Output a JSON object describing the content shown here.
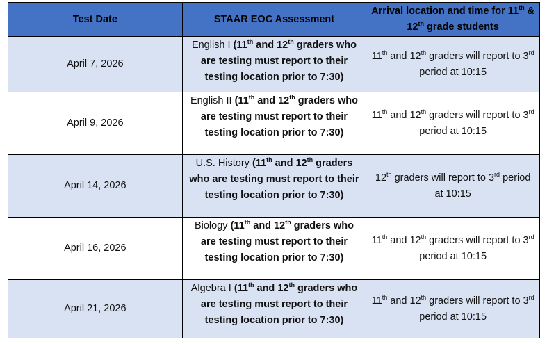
{
  "header": {
    "col1": "Test Date",
    "col2": "STAAR EOC Assessment",
    "col3": [
      {
        "text": "Arrival location and time for 11"
      },
      {
        "text": "th",
        "sup": true
      },
      {
        "text": " & 12"
      },
      {
        "text": "th",
        "sup": true
      },
      {
        "text": " grade students"
      }
    ]
  },
  "rows": [
    {
      "date": "April 7, 2026",
      "assessment": [
        {
          "text": "English I "
        },
        {
          "text": "(11",
          "bold": true
        },
        {
          "text": "th",
          "bold": true,
          "sup": true
        },
        {
          "text": " and 12",
          "bold": true
        },
        {
          "text": "th",
          "bold": true,
          "sup": true
        },
        {
          "text": " graders who are testing must report to their testing location prior to 7:30)",
          "bold": true
        }
      ],
      "arrival": [
        {
          "text": "11"
        },
        {
          "text": "th",
          "sup": true
        },
        {
          "text": " and 12"
        },
        {
          "text": "th",
          "sup": true
        },
        {
          "text": " graders will report to 3"
        },
        {
          "text": "rd",
          "sup": true
        },
        {
          "text": " period at 10:15"
        }
      ]
    },
    {
      "date": "April 9, 2026",
      "assessment": [
        {
          "text": "English II "
        },
        {
          "text": "(11",
          "bold": true
        },
        {
          "text": "th",
          "bold": true,
          "sup": true
        },
        {
          "text": " and 12",
          "bold": true
        },
        {
          "text": "th",
          "bold": true,
          "sup": true
        },
        {
          "text": " graders who are testing must report to their testing location prior to 7:30)",
          "bold": true
        }
      ],
      "arrival": [
        {
          "text": "11"
        },
        {
          "text": "th",
          "sup": true
        },
        {
          "text": " and 12"
        },
        {
          "text": "th",
          "sup": true
        },
        {
          "text": " graders will report to 3"
        },
        {
          "text": "rd",
          "sup": true
        },
        {
          "text": " period at 10:15"
        }
      ]
    },
    {
      "date": "April 14, 2026",
      "assessment": [
        {
          "text": "U.S. History "
        },
        {
          "text": "(11",
          "bold": true
        },
        {
          "text": "th",
          "bold": true,
          "sup": true
        },
        {
          "text": " and 12",
          "bold": true
        },
        {
          "text": "th",
          "bold": true,
          "sup": true
        },
        {
          "text": " graders who are testing must report to their testing location prior to 7:30)",
          "bold": true
        }
      ],
      "arrival": [
        {
          "text": "12"
        },
        {
          "text": "th",
          "sup": true
        },
        {
          "text": " graders will report to 3"
        },
        {
          "text": "rd",
          "sup": true
        },
        {
          "text": " period at 10:15"
        }
      ]
    },
    {
      "date": "April 16, 2026",
      "assessment": [
        {
          "text": "Biology "
        },
        {
          "text": "(11",
          "bold": true
        },
        {
          "text": "th",
          "bold": true,
          "sup": true
        },
        {
          "text": " and 12",
          "bold": true
        },
        {
          "text": "th",
          "bold": true,
          "sup": true
        },
        {
          "text": " graders who are testing must report to their testing location prior to 7:30)",
          "bold": true
        }
      ],
      "arrival": [
        {
          "text": "11"
        },
        {
          "text": "th",
          "sup": true
        },
        {
          "text": " and 12"
        },
        {
          "text": "th",
          "sup": true
        },
        {
          "text": " graders will report to 3"
        },
        {
          "text": "rd",
          "sup": true
        },
        {
          "text": " period at 10:15"
        }
      ]
    },
    {
      "date": "April 21, 2026",
      "assessment": [
        {
          "text": "Algebra I "
        },
        {
          "text": "(11",
          "bold": true
        },
        {
          "text": "th",
          "bold": true,
          "sup": true
        },
        {
          "text": " and 12",
          "bold": true
        },
        {
          "text": "th",
          "bold": true,
          "sup": true
        },
        {
          "text": " graders who are testing must report to their testing location prior to 7:30)",
          "bold": true
        }
      ],
      "arrival": [
        {
          "text": "11"
        },
        {
          "text": "th",
          "sup": true
        },
        {
          "text": " and 12"
        },
        {
          "text": "th",
          "sup": true
        },
        {
          "text": " graders will report to 3"
        },
        {
          "text": "rd",
          "sup": true
        },
        {
          "text": " period at 10:15"
        }
      ]
    }
  ],
  "colors": {
    "header_bg": "#4472C4",
    "alt_row_bg": "#D9E2F3"
  }
}
